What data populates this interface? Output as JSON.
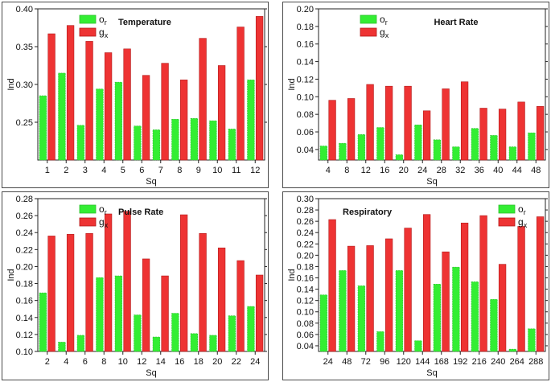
{
  "chart_data": [
    {
      "type": "bar",
      "title": "Temperature",
      "xlabel": "Sq",
      "ylabel": "Ind",
      "categories": [
        "1",
        "2",
        "3",
        "4",
        "5",
        "6",
        "7",
        "8",
        "9",
        "10",
        "11",
        "12"
      ],
      "ylim": [
        0.2,
        0.4
      ],
      "yticks": [
        "0.25",
        "0.30",
        "0.35",
        "0.40"
      ],
      "ytick_values": [
        0.25,
        0.3,
        0.35,
        0.4
      ],
      "legend": [
        "o_r",
        "g_x"
      ],
      "legend_position": "top-left",
      "colors": {
        "o_r": "#33ee33",
        "g_x": "#ee3333"
      },
      "series": [
        {
          "name": "o_r",
          "values": [
            0.285,
            0.315,
            0.246,
            0.294,
            0.303,
            0.245,
            0.24,
            0.254,
            0.255,
            0.252,
            0.241,
            0.306
          ]
        },
        {
          "name": "g_x",
          "values": [
            0.367,
            0.378,
            0.357,
            0.342,
            0.347,
            0.312,
            0.328,
            0.306,
            0.361,
            0.325,
            0.376,
            0.39
          ]
        }
      ]
    },
    {
      "type": "bar",
      "title": "Heart Rate",
      "xlabel": "Sq",
      "ylabel": "Ind",
      "categories": [
        "4",
        "8",
        "12",
        "16",
        "20",
        "24",
        "28",
        "32",
        "36",
        "40",
        "44",
        "48"
      ],
      "ylim": [
        0.028,
        0.2
      ],
      "yticks": [
        "0.04",
        "0.06",
        "0.08",
        "0.10",
        "0.12",
        "0.14",
        "0.16",
        "0.18",
        "0.20"
      ],
      "ytick_values": [
        0.04,
        0.06,
        0.08,
        0.1,
        0.12,
        0.14,
        0.16,
        0.18,
        0.2
      ],
      "legend": [
        "o_r",
        "g_x"
      ],
      "legend_position": "top-left",
      "colors": {
        "o_r": "#33ee33",
        "g_x": "#ee3333"
      },
      "series": [
        {
          "name": "o_r",
          "values": [
            0.044,
            0.047,
            0.057,
            0.065,
            0.034,
            0.068,
            0.051,
            0.043,
            0.064,
            0.056,
            0.043,
            0.059
          ]
        },
        {
          "name": "g_x",
          "values": [
            0.096,
            0.098,
            0.114,
            0.112,
            0.112,
            0.084,
            0.109,
            0.117,
            0.087,
            0.086,
            0.094,
            0.089
          ]
        }
      ]
    },
    {
      "type": "bar",
      "title": "Pulse Rate",
      "xlabel": "Sq",
      "ylabel": "Ind",
      "categories": [
        "2",
        "4",
        "6",
        "8",
        "10",
        "12",
        "14",
        "16",
        "18",
        "20",
        "22",
        "24"
      ],
      "ylim": [
        0.1,
        0.28
      ],
      "yticks": [
        "0.10",
        "0.12",
        "0.14",
        "0.16",
        "0.18",
        "0.20",
        "0.22",
        "0.24",
        "0.26",
        "0.28"
      ],
      "ytick_values": [
        0.1,
        0.12,
        0.14,
        0.16,
        0.18,
        0.2,
        0.22,
        0.24,
        0.26,
        0.28
      ],
      "legend": [
        "o_r",
        "g_x"
      ],
      "legend_position": "top-left",
      "colors": {
        "o_r": "#33ee33",
        "g_x": "#ee3333"
      },
      "series": [
        {
          "name": "o_r",
          "values": [
            0.169,
            0.111,
            0.119,
            0.187,
            0.189,
            0.143,
            0.117,
            0.145,
            0.121,
            0.119,
            0.142,
            0.153
          ]
        },
        {
          "name": "g_x",
          "values": [
            0.236,
            0.238,
            0.239,
            0.262,
            0.265,
            0.209,
            0.189,
            0.261,
            0.239,
            0.222,
            0.207,
            0.19
          ]
        }
      ]
    },
    {
      "type": "bar",
      "title": "Respiratory",
      "xlabel": "Sq",
      "ylabel": "Ind",
      "categories": [
        "24",
        "48",
        "72",
        "96",
        "120",
        "144",
        "168",
        "192",
        "216",
        "240",
        "264",
        "288"
      ],
      "ylim": [
        0.03,
        0.3
      ],
      "yticks": [
        "0.04",
        "0.06",
        "0.08",
        "0.10",
        "0.12",
        "0.14",
        "0.16",
        "0.18",
        "0.20",
        "0.22",
        "0.24",
        "0.26",
        "0.28",
        "0.30"
      ],
      "ytick_values": [
        0.04,
        0.06,
        0.08,
        0.1,
        0.12,
        0.14,
        0.16,
        0.18,
        0.2,
        0.22,
        0.24,
        0.26,
        0.28,
        0.3
      ],
      "legend": [
        "o_r",
        "g_x"
      ],
      "legend_position": "top-right",
      "colors": {
        "o_r": "#33ee33",
        "g_x": "#ee3333"
      },
      "series": [
        {
          "name": "o_r",
          "values": [
            0.13,
            0.173,
            0.146,
            0.065,
            0.173,
            0.049,
            0.149,
            0.179,
            0.153,
            0.122,
            0.034,
            0.07
          ]
        },
        {
          "name": "g_x",
          "values": [
            0.263,
            0.216,
            0.217,
            0.229,
            0.248,
            0.272,
            0.206,
            0.257,
            0.27,
            0.184,
            0.251,
            0.268
          ]
        }
      ]
    }
  ]
}
